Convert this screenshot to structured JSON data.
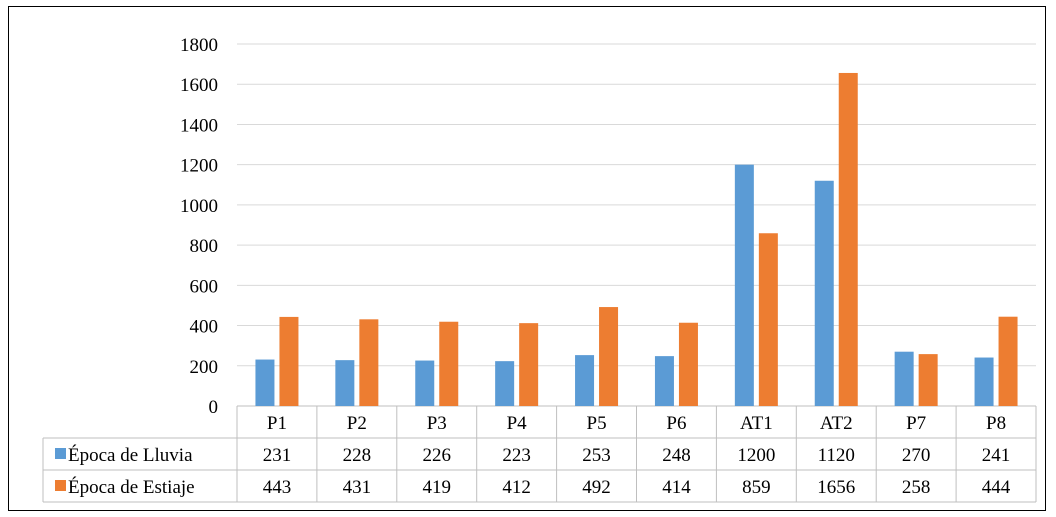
{
  "chart_data": {
    "type": "bar",
    "categories": [
      "P1",
      "P2",
      "P3",
      "P4",
      "P5",
      "P6",
      "AT1",
      "AT2",
      "P7",
      "P8"
    ],
    "series": [
      {
        "name": "Época de Lluvia",
        "color": "#5b9bd5",
        "values": [
          231,
          228,
          226,
          223,
          253,
          248,
          1200,
          1120,
          270,
          241
        ]
      },
      {
        "name": "Época de Estiaje",
        "color": "#ed7d31",
        "values": [
          443,
          431,
          419,
          412,
          492,
          414,
          859,
          1656,
          258,
          444
        ]
      }
    ],
    "ylim": [
      0,
      1800
    ],
    "yticks": [
      0,
      200,
      400,
      600,
      800,
      1000,
      1200,
      1400,
      1600,
      1800
    ],
    "grid": true,
    "legend": "data-table"
  }
}
